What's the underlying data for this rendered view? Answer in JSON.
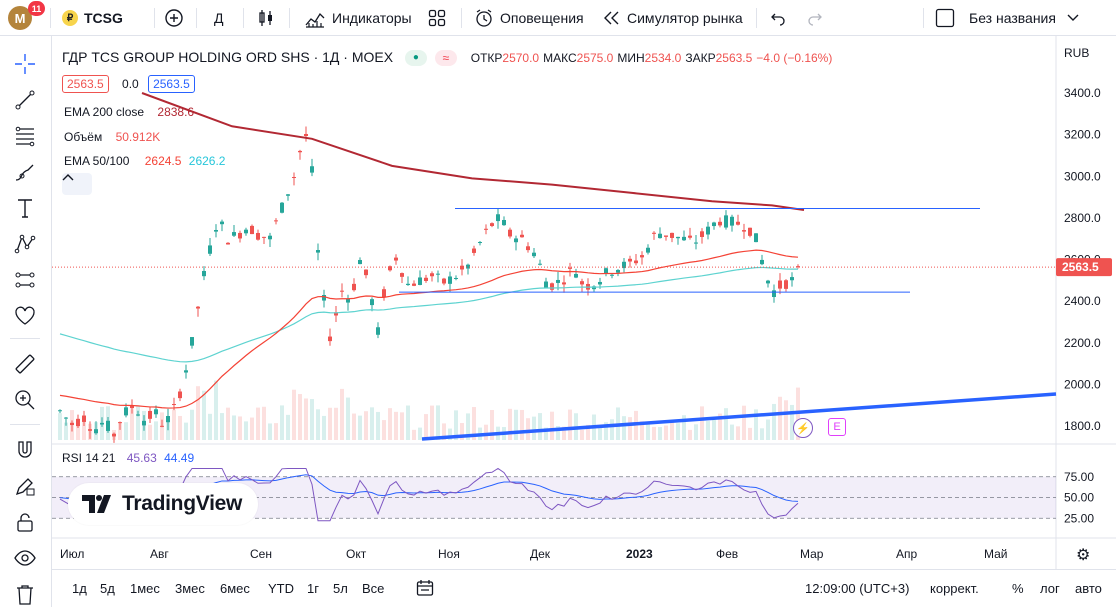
{
  "user": {
    "initial": "M",
    "notifications": "11"
  },
  "symbol": {
    "ticker": "TCSG"
  },
  "toolbar": {
    "interval": "Д",
    "indicators_label": "Индикаторы",
    "alerts_label": "Оповещения",
    "replay_label": "Симулятор рынка",
    "layout_name": "Без названия"
  },
  "legend": {
    "title": "ГДР TCS GROUP HOLDING ORD SHS · 1Д · MOEX",
    "ohlc": [
      {
        "label": "ОТКР",
        "value": "2570.0"
      },
      {
        "label": "МАКС",
        "value": "2575.0"
      },
      {
        "label": "МИН",
        "value": "2534.0"
      },
      {
        "label": "ЗАКР",
        "value": "2563.5"
      }
    ],
    "change": "−4.0 (−0.16%)",
    "bid": "2563.5",
    "spread": "0.0",
    "ask": "2563.5",
    "ema200_label": "EMA 200 close",
    "ema200_value": "2838.6",
    "volume_label": "Объём",
    "volume_value": "50.912K",
    "ema50_100_label": "EMA 50/100",
    "ema50_value": "2624.5",
    "ema100_value": "2626.2",
    "rsi_label": "RSI 14 21",
    "rsi_value1": "45.63",
    "rsi_value2": "44.49"
  },
  "price_axis": {
    "currency": "RUB",
    "ticks": [
      "3400.0",
      "3200.0",
      "3000.0",
      "2800.0",
      "2600.0",
      "2400.0",
      "2200.0",
      "2000.0",
      "1800.0"
    ],
    "last_price": "2563.5"
  },
  "rsi_axis": {
    "ticks": [
      "75.00",
      "50.00",
      "25.00"
    ]
  },
  "time_axis": {
    "labels": [
      "Июл",
      "Авг",
      "Сен",
      "Окт",
      "Ноя",
      "Дек",
      "2023",
      "Фев",
      "Мар",
      "Апр",
      "Май"
    ]
  },
  "bottom": {
    "ranges": [
      "1д",
      "5д",
      "1мес",
      "3мес",
      "6мес",
      "YTD",
      "1г",
      "5л",
      "Все"
    ],
    "time": "12:09:00 (UTC+3)",
    "mode_label": "коррект.",
    "percent_label": "%",
    "log_label": "лог",
    "auto_label": "авто"
  },
  "watermark": {
    "brand": "TradingView"
  },
  "badges": {
    "event": "E"
  },
  "colors": {
    "up": "#26a69a",
    "down": "#ef5350",
    "ema200": "#b22833",
    "ema50": "#f44336",
    "ema100": "#5ed3d0",
    "trend_blue": "#2962ff",
    "rsi": "#7e57c2"
  }
}
